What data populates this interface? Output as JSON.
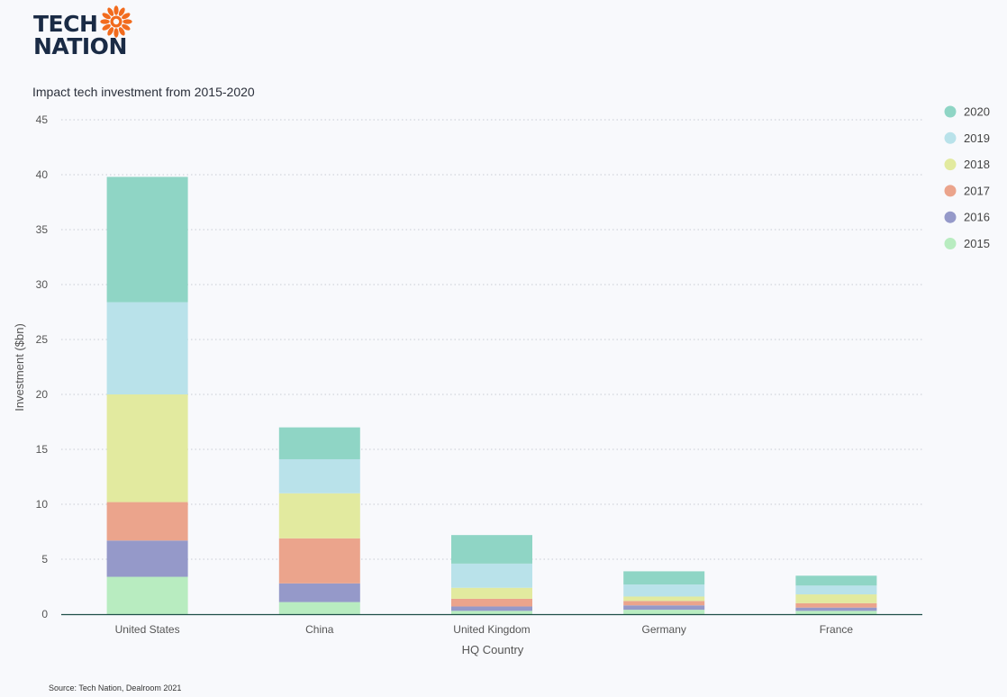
{
  "logo": {
    "line1": "TECH",
    "line2": "NATION",
    "sun_color": "#f26b1d"
  },
  "source": "Source: Tech Nation, Dealroom 2021",
  "chart_data": {
    "type": "bar",
    "stacked": true,
    "title": "Impact tech investment from 2015-2020",
    "xlabel": "HQ Country",
    "ylabel": "Investment ($bn)",
    "ylim": [
      0,
      45
    ],
    "yticks": [
      0,
      5,
      10,
      15,
      20,
      25,
      30,
      35,
      40,
      45
    ],
    "grid": true,
    "legend_position": "top-right",
    "categories": [
      "United States",
      "China",
      "United Kingdom",
      "Germany",
      "France"
    ],
    "series": [
      {
        "name": "2015",
        "color": "#b8ecc0",
        "values": [
          3.4,
          1.1,
          0.3,
          0.4,
          0.3
        ]
      },
      {
        "name": "2016",
        "color": "#9599c9",
        "values": [
          3.3,
          1.7,
          0.4,
          0.4,
          0.3
        ]
      },
      {
        "name": "2017",
        "color": "#eba48c",
        "values": [
          3.5,
          4.1,
          0.7,
          0.4,
          0.4
        ]
      },
      {
        "name": "2018",
        "color": "#e2ea9f",
        "values": [
          9.8,
          4.1,
          1.0,
          0.4,
          0.8
        ]
      },
      {
        "name": "2019",
        "color": "#b9e2ea",
        "values": [
          8.4,
          3.1,
          2.2,
          1.1,
          0.8
        ]
      },
      {
        "name": "2020",
        "color": "#8fd5c5",
        "values": [
          11.4,
          2.9,
          2.6,
          1.2,
          0.9
        ]
      }
    ]
  }
}
